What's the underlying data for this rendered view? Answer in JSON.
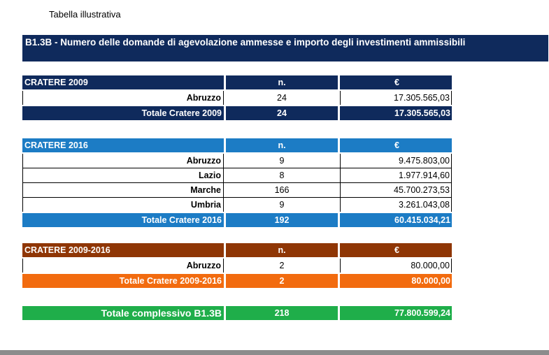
{
  "caption": "Tabella illustrativa",
  "title": "B1.3B - Numero delle domande di agevolazione ammesse e importo degli investimenti ammissibili",
  "headers": {
    "n": "n.",
    "eur": "€"
  },
  "sections": [
    {
      "name": "CRATERE 2009",
      "rows": [
        {
          "region": "Abruzzo",
          "n": "24",
          "eur": "17.305.565,03"
        }
      ],
      "total": {
        "label": "Totale Cratere 2009",
        "n": "24",
        "eur": "17.305.565,03"
      }
    },
    {
      "name": "CRATERE 2016",
      "rows": [
        {
          "region": "Abruzzo",
          "n": "9",
          "eur": "9.475.803,00"
        },
        {
          "region": "Lazio",
          "n": "8",
          "eur": "1.977.914,60"
        },
        {
          "region": "Marche",
          "n": "166",
          "eur": "45.700.273,53"
        },
        {
          "region": "Umbria",
          "n": "9",
          "eur": "3.261.043,08"
        }
      ],
      "total": {
        "label": "Totale Cratere 2016",
        "n": "192",
        "eur": "60.415.034,21"
      }
    },
    {
      "name": "CRATERE 2009-2016",
      "rows": [
        {
          "region": "Abruzzo",
          "n": "2",
          "eur": "80.000,00"
        }
      ],
      "total": {
        "label": "Totale Cratere 2009-2016",
        "n": "2",
        "eur": "80.000,00"
      }
    }
  ],
  "grand_total": {
    "label": "Totale complessivo B1.3B",
    "n": "218",
    "eur": "77.800.599,24"
  },
  "colors": {
    "navy": "#0f2a5c",
    "blue": "#1c7cc5",
    "brown": "#8f3605",
    "orange": "#f26b0f",
    "green": "#1fae4a"
  }
}
